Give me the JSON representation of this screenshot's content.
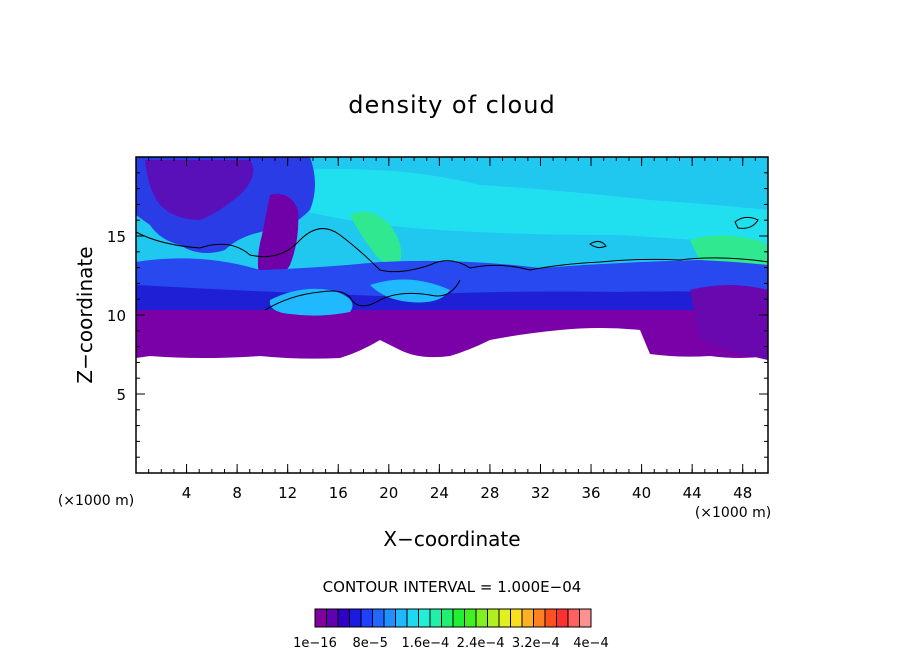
{
  "chart_data": {
    "type": "heatmap",
    "title": "density of cloud",
    "xlabel": "X−coordinate",
    "ylabel": "Z−coordinate",
    "x_unit_label": "(×1000 m)",
    "y_unit_label": "(×1000 m)",
    "xlim": [
      0,
      50
    ],
    "ylim": [
      0,
      20
    ],
    "x_ticks": [
      4,
      8,
      12,
      16,
      20,
      24,
      28,
      32,
      36,
      40,
      44,
      48
    ],
    "y_ticks": [
      5,
      10,
      15
    ],
    "contour_interval_label": "CONTOUR INTERVAL = 1.000E−04",
    "colorbar": {
      "colors": [
        "#8000a0",
        "#6000b0",
        "#3000c8",
        "#1a1ae0",
        "#2040ff",
        "#2068ff",
        "#2090ff",
        "#20b8ff",
        "#20d8f0",
        "#20f0d8",
        "#20f0a8",
        "#20f070",
        "#20f030",
        "#40f020",
        "#80f020",
        "#b0f020",
        "#e0f020",
        "#f8e020",
        "#ffb020",
        "#ff8020",
        "#ff5020",
        "#ff3030",
        "#ff6060",
        "#ff9090"
      ],
      "labels": [
        "1e−16",
        "8e−5",
        "1.6e−4",
        "2.4e−4",
        "3.2e−4",
        "4e−4"
      ]
    }
  }
}
